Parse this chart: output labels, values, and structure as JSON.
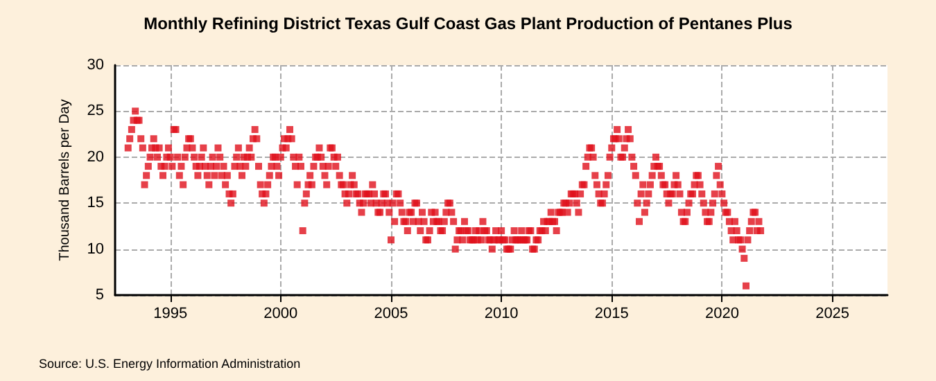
{
  "chart_data": {
    "type": "scatter",
    "title": "Monthly Refining District Texas Gulf Coast Gas Plant Production of Pentanes Plus",
    "ylabel": "Thousand Barrels per Day",
    "annotations": [
      "Source: U.S. Energy Information Administration"
    ],
    "xlim": [
      "1992-07",
      "2027-07"
    ],
    "xticks": [
      "1995",
      "2000",
      "2005",
      "2010",
      "2015",
      "2020",
      "2025"
    ],
    "ylim": [
      5,
      30
    ],
    "yticks": [
      5,
      10,
      15,
      20,
      25,
      30
    ],
    "grid": true,
    "marker": "square",
    "series": [
      {
        "color": "#e0101c",
        "x": [
          "1993-02",
          "1993-03",
          "1993-04",
          "1993-05",
          "1993-06",
          "1993-07",
          "1993-08",
          "1993-09",
          "1993-10",
          "1993-11",
          "1993-12",
          "1994-01",
          "1994-02",
          "1994-03",
          "1994-04",
          "1994-05",
          "1994-06",
          "1994-07",
          "1994-08",
          "1994-09",
          "1994-10",
          "1994-11",
          "1994-12",
          "1995-01",
          "1995-02",
          "1995-03",
          "1995-04",
          "1995-05",
          "1995-06",
          "1995-07",
          "1995-08",
          "1995-09",
          "1995-10",
          "1995-11",
          "1995-12",
          "1996-01",
          "1996-02",
          "1996-03",
          "1996-04",
          "1996-05",
          "1996-06",
          "1996-07",
          "1996-08",
          "1996-09",
          "1996-10",
          "1996-11",
          "1996-12",
          "1997-01",
          "1997-02",
          "1997-03",
          "1997-04",
          "1997-05",
          "1997-06",
          "1997-07",
          "1997-08",
          "1997-09",
          "1997-10",
          "1997-11",
          "1997-12",
          "1998-01",
          "1998-02",
          "1998-03",
          "1998-04",
          "1998-05",
          "1998-06",
          "1998-07",
          "1998-08",
          "1998-09",
          "1998-10",
          "1998-11",
          "1998-12",
          "1999-01",
          "1999-02",
          "1999-03",
          "1999-04",
          "1999-05",
          "1999-06",
          "1999-07",
          "1999-08",
          "1999-09",
          "1999-10",
          "1999-11",
          "1999-12",
          "2000-01",
          "2000-02",
          "2000-03",
          "2000-04",
          "2000-05",
          "2000-06",
          "2000-07",
          "2000-08",
          "2000-09",
          "2000-10",
          "2000-11",
          "2000-12",
          "2001-01",
          "2001-02",
          "2001-03",
          "2001-04",
          "2001-05",
          "2001-06",
          "2001-07",
          "2001-08",
          "2001-09",
          "2001-10",
          "2001-11",
          "2001-12",
          "2002-01",
          "2002-02",
          "2002-03",
          "2002-04",
          "2002-05",
          "2002-06",
          "2002-07",
          "2002-08",
          "2002-09",
          "2002-10",
          "2002-11",
          "2002-12",
          "2003-01",
          "2003-02",
          "2003-03",
          "2003-04",
          "2003-05",
          "2003-06",
          "2003-07",
          "2003-08",
          "2003-09",
          "2003-10",
          "2003-11",
          "2003-12",
          "2004-01",
          "2004-02",
          "2004-03",
          "2004-04",
          "2004-05",
          "2004-06",
          "2004-07",
          "2004-08",
          "2004-09",
          "2004-10",
          "2004-11",
          "2004-12",
          "2005-01",
          "2005-02",
          "2005-03",
          "2005-04",
          "2005-05",
          "2005-06",
          "2005-07",
          "2005-08",
          "2005-09",
          "2005-10",
          "2005-11",
          "2005-12",
          "2006-01",
          "2006-02",
          "2006-03",
          "2006-04",
          "2006-05",
          "2006-06",
          "2006-07",
          "2006-08",
          "2006-09",
          "2006-10",
          "2006-11",
          "2006-12",
          "2007-01",
          "2007-02",
          "2007-03",
          "2007-04",
          "2007-05",
          "2007-06",
          "2007-07",
          "2007-08",
          "2007-09",
          "2007-10",
          "2007-11",
          "2007-12",
          "2008-01",
          "2008-02",
          "2008-03",
          "2008-04",
          "2008-05",
          "2008-06",
          "2008-07",
          "2008-08",
          "2008-09",
          "2008-10",
          "2008-11",
          "2008-12",
          "2009-01",
          "2009-02",
          "2009-03",
          "2009-04",
          "2009-05",
          "2009-06",
          "2009-07",
          "2009-08",
          "2009-09",
          "2009-10",
          "2009-11",
          "2009-12",
          "2010-01",
          "2010-02",
          "2010-03",
          "2010-04",
          "2010-05",
          "2010-06",
          "2010-07",
          "2010-08",
          "2010-09",
          "2010-10",
          "2010-11",
          "2010-12",
          "2011-01",
          "2011-02",
          "2011-03",
          "2011-04",
          "2011-05",
          "2011-06",
          "2011-07",
          "2011-08",
          "2011-09",
          "2011-10",
          "2011-11",
          "2011-12",
          "2012-01",
          "2012-02",
          "2012-03",
          "2012-04",
          "2012-05",
          "2012-06",
          "2012-07",
          "2012-08",
          "2012-09",
          "2012-10",
          "2012-11",
          "2012-12",
          "2013-01",
          "2013-02",
          "2013-03",
          "2013-04",
          "2013-05",
          "2013-06",
          "2013-07",
          "2013-08",
          "2013-09",
          "2013-10",
          "2013-11",
          "2013-12",
          "2014-01",
          "2014-02",
          "2014-03",
          "2014-04",
          "2014-05",
          "2014-06",
          "2014-07",
          "2014-08",
          "2014-09",
          "2014-10",
          "2014-11",
          "2014-12",
          "2015-01",
          "2015-02",
          "2015-03",
          "2015-04",
          "2015-05",
          "2015-06",
          "2015-07",
          "2015-08",
          "2015-09",
          "2015-10",
          "2015-11",
          "2015-12",
          "2016-01",
          "2016-02",
          "2016-03",
          "2016-04",
          "2016-05",
          "2016-06",
          "2016-07",
          "2016-08",
          "2016-09",
          "2016-10",
          "2016-11",
          "2016-12",
          "2017-01",
          "2017-02",
          "2017-03",
          "2017-04",
          "2017-05",
          "2017-06",
          "2017-07",
          "2017-08",
          "2017-09",
          "2017-10",
          "2017-11",
          "2017-12",
          "2018-01",
          "2018-02",
          "2018-03",
          "2018-04",
          "2018-05",
          "2018-06",
          "2018-07",
          "2018-08",
          "2018-09",
          "2018-10",
          "2018-11",
          "2018-12",
          "2019-01",
          "2019-02",
          "2019-03",
          "2019-04",
          "2019-05",
          "2019-06",
          "2019-07",
          "2019-08",
          "2019-09",
          "2019-10",
          "2019-11",
          "2019-12",
          "2020-01",
          "2020-02",
          "2020-03",
          "2020-04",
          "2020-05",
          "2020-06",
          "2020-07",
          "2020-08",
          "2020-09",
          "2020-10",
          "2020-11",
          "2020-12",
          "2021-01",
          "2021-02",
          "2021-03",
          "2021-04",
          "2021-05",
          "2021-06",
          "2021-07",
          "2021-08",
          "2021-09",
          "2021-10"
        ],
        "values": [
          21,
          22,
          23,
          24,
          25,
          24,
          24,
          22,
          21,
          17,
          18,
          19,
          20,
          21,
          22,
          21,
          20,
          21,
          19,
          18,
          19,
          20,
          21,
          20,
          19,
          23,
          23,
          20,
          18,
          19,
          17,
          20,
          21,
          22,
          22,
          21,
          20,
          19,
          18,
          19,
          20,
          21,
          19,
          18,
          17,
          19,
          20,
          18,
          19,
          21,
          20,
          18,
          19,
          17,
          18,
          16,
          15,
          16,
          19,
          20,
          21,
          19,
          18,
          20,
          19,
          20,
          21,
          20,
          22,
          23,
          22,
          19,
          17,
          16,
          15,
          16,
          17,
          18,
          19,
          20,
          20,
          19,
          18,
          20,
          21,
          22,
          21,
          22,
          23,
          22,
          20,
          19,
          17,
          20,
          19,
          12,
          15,
          16,
          17,
          18,
          17,
          19,
          20,
          20,
          21,
          20,
          19,
          18,
          17,
          19,
          21,
          21,
          20,
          19,
          20,
          18,
          17,
          17,
          16,
          15,
          16,
          17,
          18,
          17,
          16,
          16,
          15,
          14,
          15,
          16,
          16,
          16,
          15,
          17,
          16,
          15,
          14,
          14,
          15,
          16,
          16,
          15,
          14,
          11,
          15,
          13,
          16,
          16,
          15,
          14,
          13,
          13,
          12,
          14,
          14,
          13,
          15,
          15,
          13,
          12,
          14,
          13,
          11,
          11,
          12,
          14,
          13,
          14,
          13,
          13,
          12,
          12,
          13,
          14,
          15,
          15,
          14,
          13,
          10,
          11,
          12,
          12,
          11,
          13,
          12,
          12,
          11,
          11,
          11,
          12,
          11,
          12,
          11,
          13,
          12,
          12,
          11,
          11,
          10,
          11,
          12,
          11,
          11,
          12,
          11,
          11,
          10,
          10,
          10,
          11,
          12,
          11,
          11,
          11,
          12,
          11,
          11,
          11,
          12,
          12,
          10,
          10,
          11,
          11,
          12,
          12,
          13,
          12,
          13,
          13,
          14,
          13,
          13,
          12,
          14,
          14,
          14,
          15,
          15,
          14,
          15,
          16,
          16,
          16,
          15,
          14,
          16,
          17,
          17,
          19,
          20,
          21,
          21,
          20,
          18,
          17,
          16,
          15,
          15,
          16,
          17,
          18,
          20,
          21,
          22,
          22,
          23,
          22,
          20,
          20,
          21,
          22,
          23,
          22,
          20,
          19,
          18,
          15,
          13,
          16,
          17,
          14,
          15,
          16,
          17,
          18,
          19,
          20,
          19,
          19,
          18,
          17,
          17,
          16,
          15,
          16,
          16,
          17,
          18,
          17,
          16,
          14,
          13,
          13,
          14,
          15,
          16,
          16,
          17,
          18,
          18,
          17,
          16,
          15,
          14,
          13,
          13,
          14,
          15,
          16,
          18,
          19,
          17,
          16,
          15,
          14,
          14,
          13,
          12,
          11,
          13,
          12,
          11,
          11,
          10,
          9,
          6,
          11,
          12,
          13,
          14,
          14,
          12,
          13,
          12
        ]
      }
    ]
  }
}
